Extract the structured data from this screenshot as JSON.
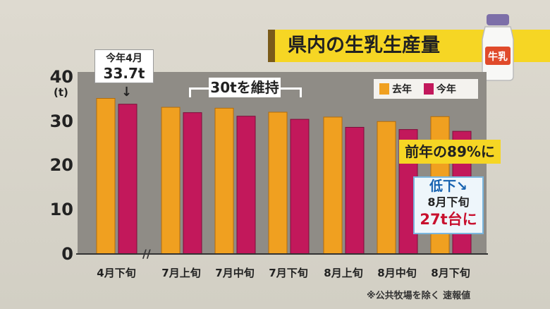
{
  "title": "県内の生乳生産量",
  "bottle_label": "牛乳",
  "chart_data": {
    "type": "bar",
    "categories": [
      "4月下旬",
      "7月上旬",
      "7月中旬",
      "7月下旬",
      "8月上旬",
      "8月中旬",
      "8月下旬"
    ],
    "series": [
      {
        "name": "去年",
        "values": [
          35.0,
          33.0,
          32.8,
          31.9,
          30.8,
          29.8,
          30.9
        ],
        "color": "#f0a020"
      },
      {
        "name": "今年",
        "values": [
          33.7,
          31.8,
          31.0,
          30.3,
          28.5,
          28.0,
          27.6
        ],
        "color": "#c2185b"
      }
    ],
    "ylim": [
      0,
      40
    ],
    "yticks": [
      "0",
      "10",
      "20",
      "30",
      "40"
    ],
    "yunit": "(t)",
    "grid": false,
    "legend_position": "top-right"
  },
  "annotations": {
    "april_line1": "今年4月",
    "april_line2": "33.7t",
    "maintain": "30tを維持",
    "percent": "前年の89%に",
    "low_line1": "低下↘",
    "low_line2": "8月下旬",
    "low_line3": "27t台に"
  },
  "footnote": "※公共牧場を除く 速報値"
}
